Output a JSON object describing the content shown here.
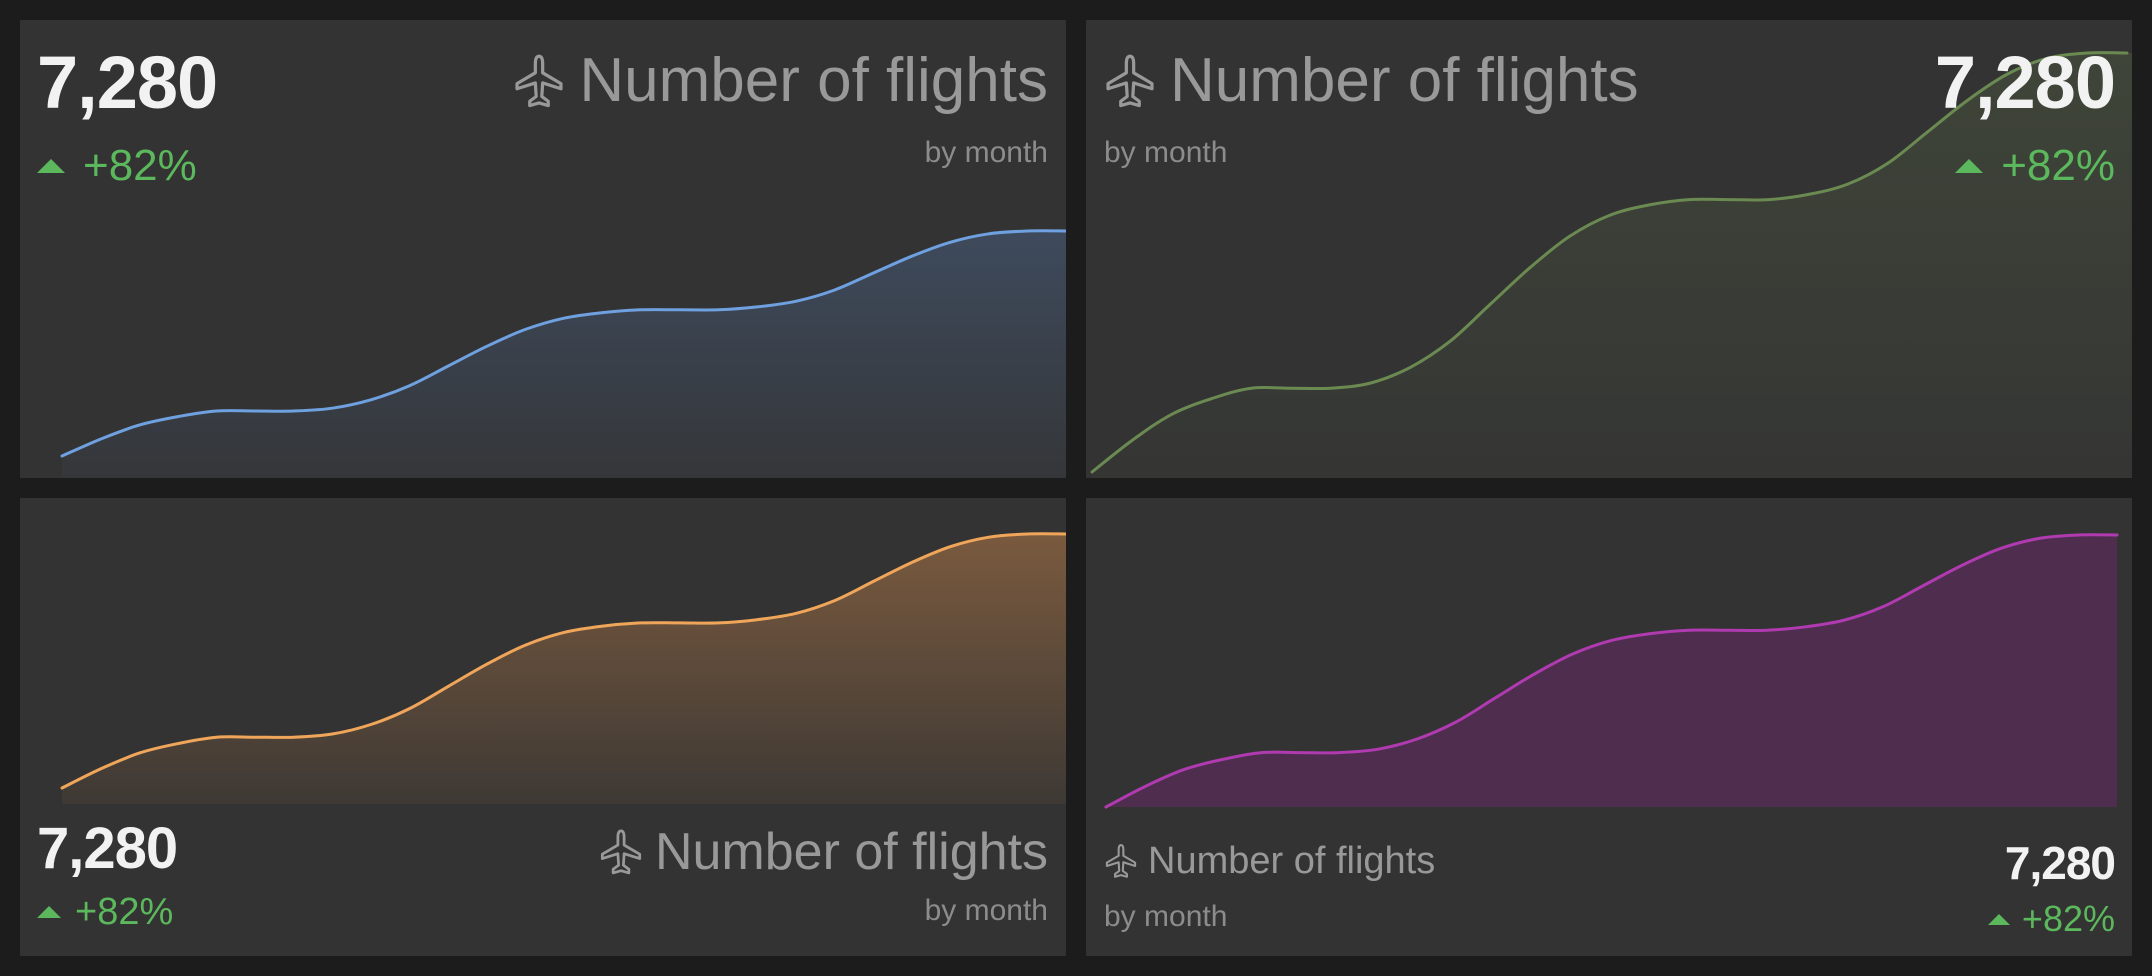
{
  "cards": [
    {
      "value": "7,280",
      "delta": "+82%",
      "title": "Number of flights",
      "subtitle": "by month",
      "icon": "airplane-icon",
      "color": "#6fa0e0",
      "fill_color": "#3e4a5c"
    },
    {
      "value": "7,280",
      "delta": "+82%",
      "title": "Number of flights",
      "subtitle": "by month",
      "icon": "airplane-icon",
      "color": "#6b8a52",
      "fill_color": "#3f4539"
    },
    {
      "value": "7,280",
      "delta": "+82%",
      "title": "Number of flights",
      "subtitle": "by month",
      "icon": "airplane-icon",
      "color": "#f0a65a",
      "fill_color": "#7a5a3e"
    },
    {
      "value": "7,280",
      "delta": "+82%",
      "title": "Number of flights",
      "subtitle": "by month",
      "icon": "airplane-icon",
      "color": "#b03ab0",
      "fill_color": "#4e2d4e"
    }
  ],
  "chart_data": [
    {
      "type": "area",
      "title": "Number of flights",
      "subtitle": "by month",
      "grid": false,
      "axes_visible": false,
      "ylim": [
        0,
        100
      ],
      "values": [
        0,
        6,
        11,
        14,
        16,
        16,
        16,
        17,
        20,
        25,
        32,
        39,
        45,
        49,
        51,
        52,
        52,
        52,
        53,
        55,
        59,
        65,
        71,
        76,
        79,
        80,
        80
      ]
    },
    {
      "type": "area",
      "title": "Number of flights",
      "subtitle": "by month",
      "grid": false,
      "axes_visible": false,
      "ylim": [
        0,
        100
      ],
      "values": [
        0,
        6,
        11,
        14,
        16,
        16,
        16,
        17,
        20,
        25,
        32,
        39,
        45,
        49,
        51,
        52,
        52,
        52,
        53,
        55,
        59,
        65,
        71,
        76,
        79,
        80,
        80
      ]
    },
    {
      "type": "area",
      "title": "Number of flights",
      "subtitle": "by month",
      "grid": false,
      "axes_visible": false,
      "ylim": [
        0,
        100
      ],
      "values": [
        0,
        6,
        11,
        14,
        16,
        16,
        16,
        17,
        20,
        25,
        32,
        39,
        45,
        49,
        51,
        52,
        52,
        52,
        53,
        55,
        59,
        65,
        71,
        76,
        79,
        80,
        80
      ]
    },
    {
      "type": "area",
      "title": "Number of flights",
      "subtitle": "by month",
      "grid": false,
      "axes_visible": false,
      "ylim": [
        0,
        100
      ],
      "values": [
        0,
        6,
        11,
        14,
        16,
        16,
        16,
        17,
        20,
        25,
        32,
        39,
        45,
        49,
        51,
        52,
        52,
        52,
        53,
        55,
        59,
        65,
        71,
        76,
        79,
        80,
        80
      ]
    }
  ]
}
